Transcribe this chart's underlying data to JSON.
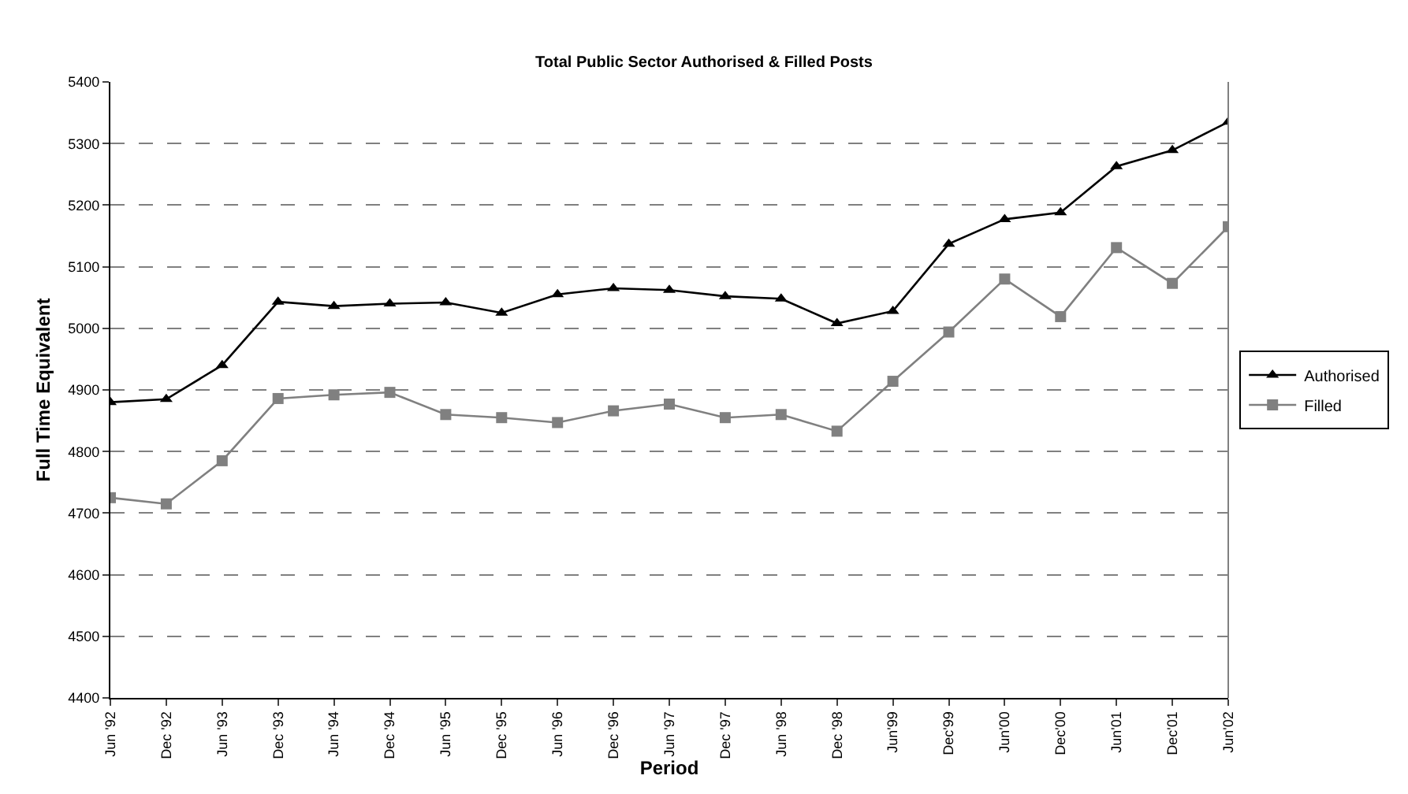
{
  "chart_data": {
    "type": "line",
    "title": "Total Public Sector Authorised & Filled Posts",
    "xlabel": "Period",
    "ylabel": "Full Time Equivalent",
    "categories": [
      "Jun '92",
      "Dec '92",
      "Jun '93",
      "Dec '93",
      "Jun '94",
      "Dec '94",
      "Jun '95",
      "Dec '95",
      "Jun '96",
      "Dec '96",
      "Jun '97",
      "Dec '97",
      "Jun '98",
      "Dec '98",
      "Jun'99",
      "Dec'99",
      "Jun'00",
      "Dec'00",
      "Jun'01",
      "Dec'01",
      "Jun'02"
    ],
    "series": [
      {
        "name": "Authorised",
        "color": "#000000",
        "marker": "triangle",
        "values": [
          4880,
          4885,
          4940,
          5043,
          5036,
          5040,
          5042,
          5025,
          5055,
          5065,
          5062,
          5052,
          5048,
          5008,
          5028,
          5137,
          5177,
          5188,
          5263,
          5289,
          5335
        ]
      },
      {
        "name": "Filled",
        "color": "#808080",
        "marker": "square",
        "values": [
          4725,
          4715,
          4785,
          4886,
          4892,
          4896,
          4860,
          4855,
          4847,
          4866,
          4877,
          4855,
          4860,
          4833,
          4914,
          4994,
          5080,
          5019,
          5131,
          5073,
          5165
        ]
      }
    ],
    "ylim": [
      4400,
      5400
    ],
    "yticks": [
      4400,
      4500,
      4600,
      4700,
      4800,
      4900,
      5000,
      5100,
      5200,
      5300,
      5400
    ],
    "grid": "y",
    "legend": "right",
    "line_style": "solid"
  }
}
